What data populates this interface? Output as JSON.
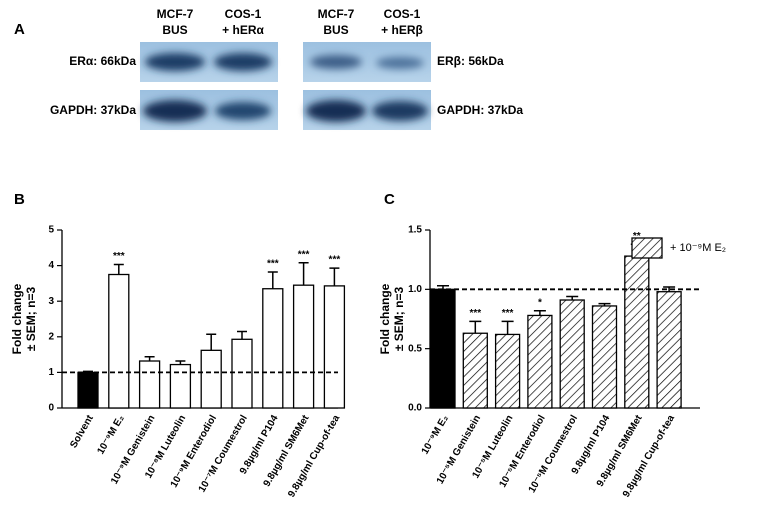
{
  "blot": {
    "panel": "A",
    "headers_left": [
      [
        "MCF-7",
        "BUS"
      ],
      [
        "COS-1",
        "+ hERα"
      ]
    ],
    "headers_right": [
      [
        "MCF-7",
        "BUS"
      ],
      [
        "COS-1",
        "+ hERβ"
      ]
    ],
    "left_labels": [
      "ERα: 66kDa",
      "GAPDH: 37kDa"
    ],
    "right_labels": [
      "ERβ: 56kDa",
      "GAPDH: 37kDa"
    ]
  },
  "chart_data": [
    {
      "type": "bar",
      "panel": "B",
      "ylabel": [
        "Fold change",
        "± SEM; n=3"
      ],
      "categories": [
        "Solvent",
        "10⁻⁹M E₂",
        "10⁻⁹M Genistein",
        "10⁻⁸M Luteolin",
        "10⁻⁹M Enterodiol",
        "10⁻⁷M Coumestrol",
        "9.8µg/ml P104",
        "9.8µg/ml SM6Met",
        "9.8µg/ml Cup-of-tea"
      ],
      "values": [
        1.0,
        3.75,
        1.32,
        1.22,
        1.62,
        1.93,
        3.35,
        3.45,
        3.43
      ],
      "errors": [
        0.03,
        0.28,
        0.12,
        0.1,
        0.45,
        0.22,
        0.47,
        0.63,
        0.5
      ],
      "fills": [
        "black",
        "white",
        "white",
        "white",
        "white",
        "white",
        "white",
        "white",
        "white"
      ],
      "annotations": [
        null,
        "***",
        null,
        null,
        null,
        null,
        "***",
        "***",
        "***"
      ],
      "reference_line": 1,
      "ylim": [
        0,
        5
      ],
      "yticks": [
        0,
        1,
        2,
        3,
        4,
        5
      ]
    },
    {
      "type": "bar",
      "panel": "C",
      "ylabel": [
        "Fold change",
        "± SEM; n=3"
      ],
      "legend": "+ 10⁻⁹M E₂",
      "categories": [
        "10⁻⁹M E₂",
        "10⁻⁵M Genistein",
        "10⁻⁵M Luteolin",
        "10⁻⁵M Enterodiol",
        "10⁻⁵M Coumestrol",
        "9.8µg/ml P104",
        "9.8µg/ml SM6Met",
        "9.8µg/ml Cup-of-tea"
      ],
      "values": [
        1.0,
        0.63,
        0.62,
        0.78,
        0.91,
        0.86,
        1.28,
        0.98
      ],
      "errors": [
        0.03,
        0.1,
        0.11,
        0.04,
        0.03,
        0.02,
        0.1,
        0.04
      ],
      "fills": [
        "black",
        "hatch",
        "hatch",
        "hatch",
        "hatch",
        "hatch",
        "hatch",
        "hatch"
      ],
      "annotations": [
        null,
        "***",
        "***",
        "*",
        null,
        null,
        "**",
        null
      ],
      "reference_line": 1,
      "ylim": [
        0,
        1.5
      ],
      "yticks": [
        {
          "value": 0,
          "label": "0.0"
        },
        0.5,
        {
          "value": 1,
          "label": "1.0"
        },
        1.5
      ]
    }
  ]
}
